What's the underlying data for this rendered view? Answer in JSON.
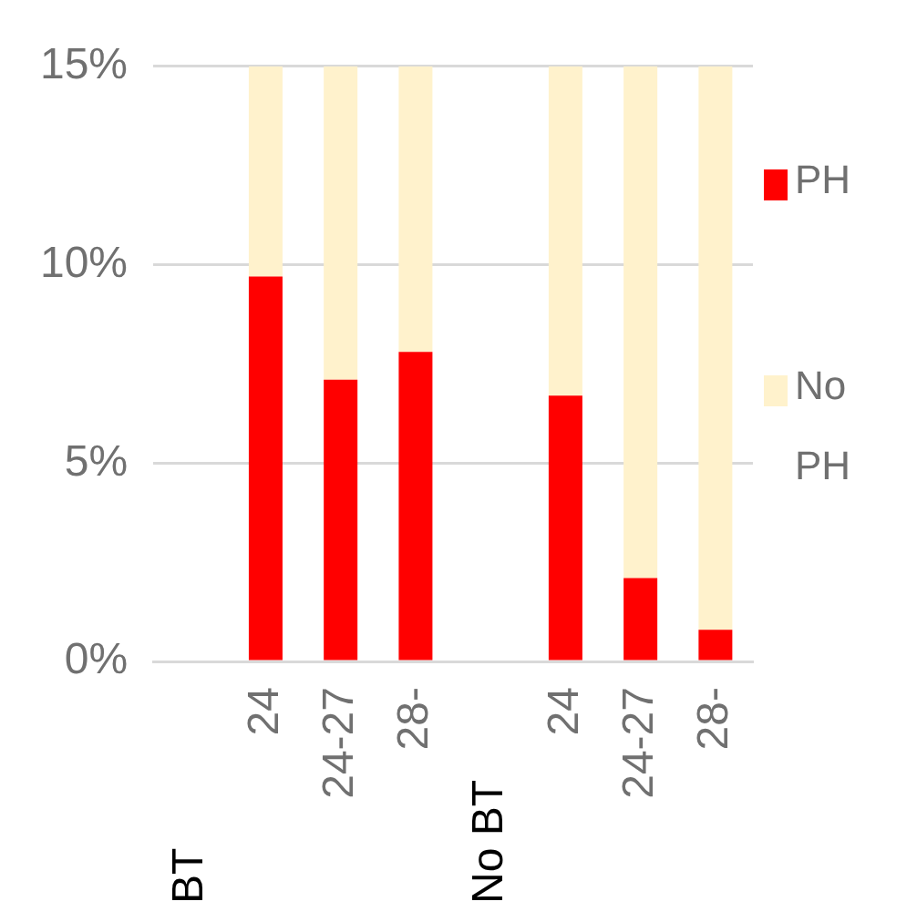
{
  "chart_data": {
    "type": "bar",
    "stacked": true,
    "categories": [
      null,
      "24",
      "24-27",
      "28-",
      null,
      "24",
      "24-27",
      "28-"
    ],
    "annotations": [
      "BT",
      "No BT"
    ],
    "series": [
      {
        "name": "PH",
        "color": "#ff0000",
        "values": [
          null,
          9.7,
          7.1,
          7.8,
          null,
          6.7,
          2.1,
          0.8
        ]
      },
      {
        "name": "No PH",
        "color": "#fff2cc",
        "values": [
          null,
          5.3,
          7.9,
          7.2,
          null,
          8.3,
          12.9,
          14.2
        ]
      }
    ],
    "ylim": [
      0,
      15
    ],
    "yticks": [
      {
        "value": 0,
        "label": "0%"
      },
      {
        "value": 5,
        "label": "5%"
      },
      {
        "value": 10,
        "label": "10%"
      },
      {
        "value": 15,
        "label": "15%"
      }
    ],
    "grid": "y",
    "legend": "right"
  }
}
